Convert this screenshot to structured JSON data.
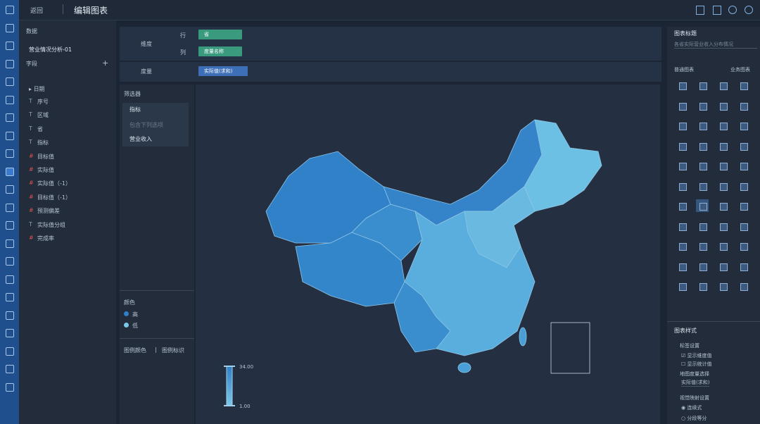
{
  "header": {
    "back": "返回",
    "title": "编辑图表"
  },
  "data_panel": {
    "title": "数据",
    "dataset": "营业情况分析-01",
    "fields_title": "字段",
    "date_group": "日期",
    "fields": [
      {
        "icon": "T",
        "name": "序号"
      },
      {
        "icon": "T",
        "name": "区域"
      },
      {
        "icon": "T",
        "name": "省"
      },
      {
        "icon": "T",
        "name": "指标"
      },
      {
        "icon": "#",
        "name": "目标值"
      },
      {
        "icon": "#",
        "name": "实际值"
      },
      {
        "icon": "#",
        "name": "实际值（-1）"
      },
      {
        "icon": "#",
        "name": "目标值（-1）"
      },
      {
        "icon": "#",
        "name": "预测偏差"
      },
      {
        "icon": "T",
        "name": "实际值分组"
      },
      {
        "icon": "#",
        "name": "完成率"
      }
    ]
  },
  "shelf": {
    "dimension": "维度",
    "row": "行",
    "row_field": "省",
    "column": "列",
    "column_field": "度量名称",
    "measure": "度量",
    "measure_field": "实际值(求和)"
  },
  "filter": {
    "title": "筛选器",
    "field": "指标",
    "mode": "包含下列选项",
    "option": "营业收入"
  },
  "color": {
    "title": "颜色",
    "high": "高",
    "low": "低"
  },
  "legend_tabs": [
    "图例颜色",
    "图例标识"
  ],
  "chart_data": {
    "type": "map",
    "range": [
      {
        "value": 1,
        "label": "1.00"
      },
      {
        "value": 34,
        "label": "34.00"
      }
    ]
  },
  "right_panel": {
    "title_label": "图表标题",
    "title_value": "各省实际营业收入分布情况",
    "tabs": [
      "普通图表",
      "业务图表"
    ],
    "style_title": "图表样式",
    "label_settings": "标签设置",
    "show_dimension": "显示维度值",
    "show_stat": "显示统计值",
    "map_measure": "地图度量选择",
    "map_measure_value": "实际值(求和)",
    "visual_map": "视觉映射设置",
    "continuous": "连续式",
    "segmented": "分段等分"
  }
}
